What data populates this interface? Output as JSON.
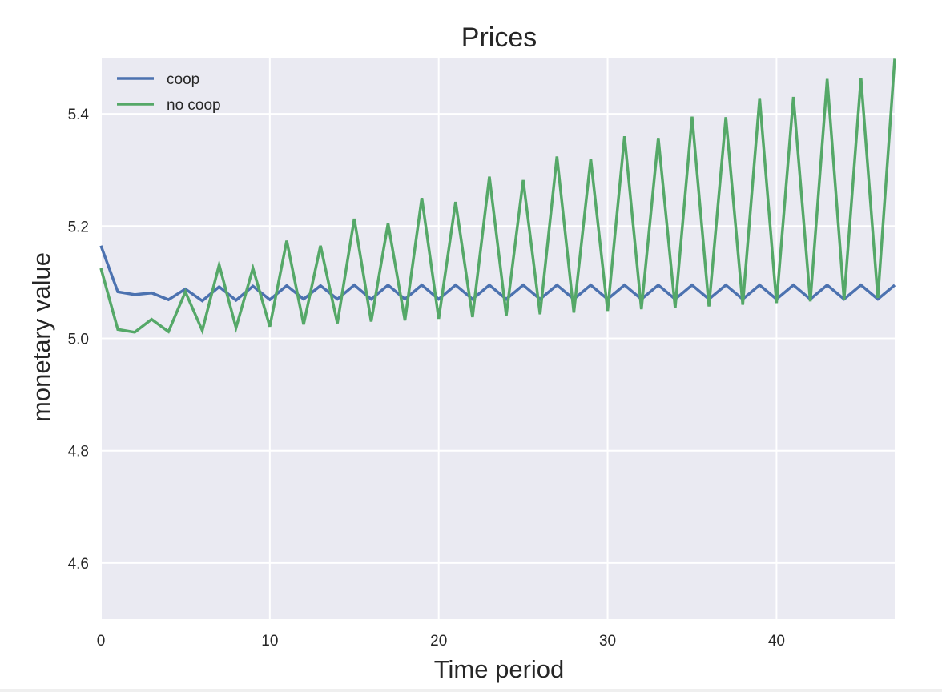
{
  "chart_data": {
    "type": "line",
    "title": "Prices",
    "xlabel": "Time period",
    "ylabel": "monetary value",
    "xlim": [
      0,
      47
    ],
    "ylim": [
      4.5,
      5.5
    ],
    "xticks": [
      0,
      10,
      20,
      30,
      40
    ],
    "yticks": [
      4.6,
      4.8,
      5.0,
      5.2,
      5.4
    ],
    "xtick_labels": [
      "0",
      "10",
      "20",
      "30",
      "40"
    ],
    "ytick_labels": [
      "4.6",
      "4.8",
      "5.0",
      "5.2",
      "5.4"
    ],
    "grid": true,
    "legend_position": "top-left",
    "background": "#eaeaf2",
    "x": [
      0,
      1,
      2,
      3,
      4,
      5,
      6,
      7,
      8,
      9,
      10,
      11,
      12,
      13,
      14,
      15,
      16,
      17,
      18,
      19,
      20,
      21,
      22,
      23,
      24,
      25,
      26,
      27,
      28,
      29,
      30,
      31,
      32,
      33,
      34,
      35,
      36,
      37,
      38,
      39,
      40,
      41,
      42,
      43,
      44,
      45,
      46,
      47
    ],
    "series": [
      {
        "name": "coop",
        "color": "#4c72b0",
        "values": [
          5.165,
          5.083,
          5.078,
          5.081,
          5.069,
          5.088,
          5.067,
          5.092,
          5.068,
          5.093,
          5.069,
          5.094,
          5.07,
          5.094,
          5.07,
          5.095,
          5.07,
          5.095,
          5.07,
          5.095,
          5.07,
          5.095,
          5.07,
          5.095,
          5.07,
          5.095,
          5.07,
          5.095,
          5.07,
          5.095,
          5.07,
          5.095,
          5.07,
          5.095,
          5.07,
          5.095,
          5.07,
          5.095,
          5.07,
          5.095,
          5.07,
          5.095,
          5.07,
          5.095,
          5.07,
          5.095,
          5.07,
          5.095
        ]
      },
      {
        "name": "no coop",
        "color": "#55a868",
        "values": [
          5.125,
          5.016,
          5.011,
          5.034,
          5.012,
          5.083,
          5.014,
          5.131,
          5.019,
          5.125,
          5.021,
          5.174,
          5.025,
          5.165,
          5.027,
          5.213,
          5.03,
          5.205,
          5.032,
          5.25,
          5.035,
          5.243,
          5.038,
          5.288,
          5.041,
          5.282,
          5.043,
          5.324,
          5.046,
          5.32,
          5.049,
          5.36,
          5.052,
          5.357,
          5.054,
          5.395,
          5.057,
          5.394,
          5.06,
          5.428,
          5.063,
          5.43,
          5.066,
          5.462,
          5.069,
          5.464,
          5.072,
          5.498
        ]
      }
    ]
  }
}
